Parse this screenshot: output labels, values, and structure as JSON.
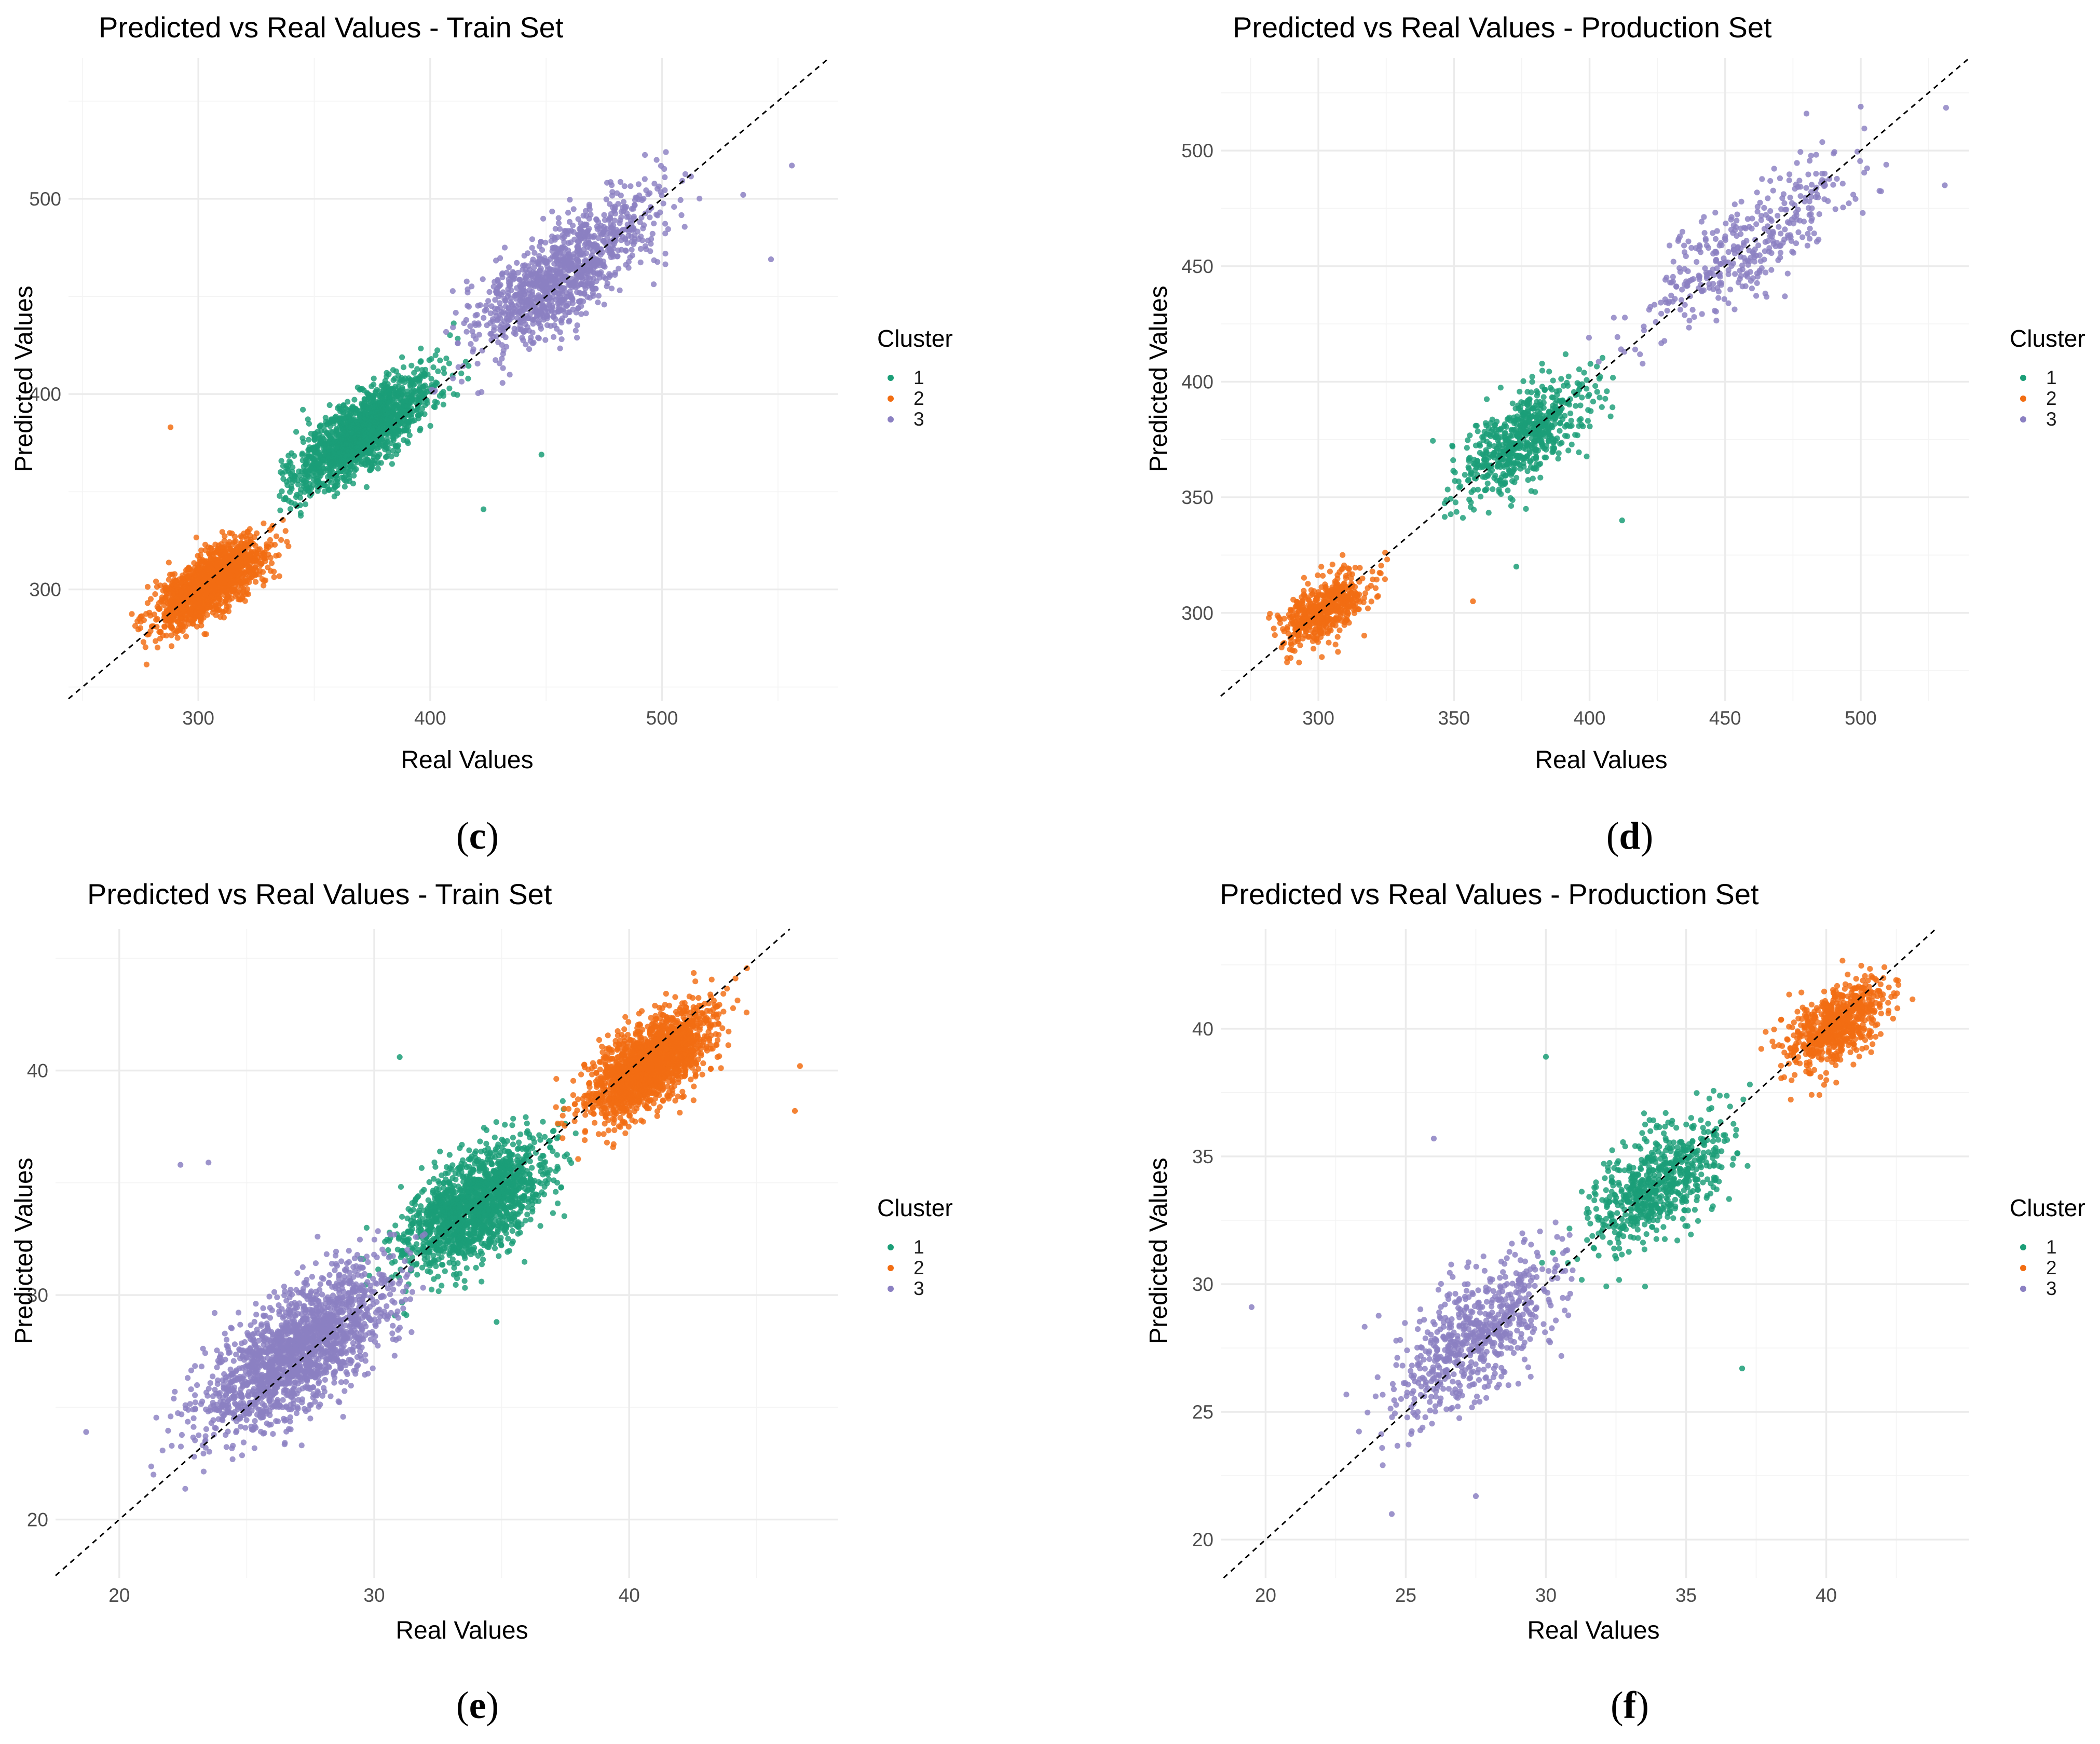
{
  "figure": {
    "panels": [
      {
        "id": "c",
        "caption": {
          "open": "(",
          "letter": "c",
          "close": ")"
        },
        "legend": {
          "title": "Cluster",
          "items": [
            "1",
            "2",
            "3"
          ]
        },
        "chart_data": {
          "type": "scatter",
          "title": "Predicted vs Real Values - Train Set",
          "xlabel": "Real Values",
          "ylabel": "Predicted Values",
          "xlim": [
            244,
            576
          ],
          "ylim": [
            243,
            572
          ],
          "x_ticks": [
            300,
            400,
            500
          ],
          "y_ticks": [
            300,
            400,
            500
          ],
          "reference_line": "y = x (dashed)",
          "series": [
            {
              "name": "1",
              "color": "#1b9e77",
              "n_points": 1600,
              "x_range": [
                335,
                425
              ],
              "center_x": 370,
              "center_y": 380,
              "spread_along": 20,
              "spread_across": 7
            },
            {
              "name": "2",
              "color": "#f26d12",
              "n_points": 1600,
              "x_range": [
                265,
                350
              ],
              "center_x": 305,
              "center_y": 303,
              "spread_along": 14,
              "spread_across": 6
            },
            {
              "name": "3",
              "color": "#8b80c2",
              "n_points": 1100,
              "x_range": [
                400,
                560
              ],
              "center_x": 458,
              "center_y": 462,
              "spread_along": 27,
              "spread_across": 10
            }
          ],
          "outliers": [
            {
              "series": "2",
              "x": 288,
              "y": 383
            },
            {
              "series": "1",
              "x": 448,
              "y": 369
            },
            {
              "series": "1",
              "x": 423,
              "y": 341
            },
            {
              "series": "3",
              "x": 556,
              "y": 517
            },
            {
              "series": "3",
              "x": 547,
              "y": 469
            },
            {
              "series": "3",
              "x": 535,
              "y": 502
            }
          ]
        }
      },
      {
        "id": "d",
        "caption": {
          "open": "(",
          "letter": "d",
          "close": ")"
        },
        "legend": {
          "title": "Cluster",
          "items": [
            "1",
            "2",
            "3"
          ]
        },
        "chart_data": {
          "type": "scatter",
          "title": "Predicted vs Real Values - Production Set",
          "xlabel": "Real Values",
          "ylabel": "Predicted Values",
          "xlim": [
            264,
            540
          ],
          "ylim": [
            262,
            540
          ],
          "x_ticks": [
            300,
            350,
            400,
            450,
            500
          ],
          "y_ticks": [
            300,
            350,
            400,
            450,
            500
          ],
          "reference_line": "y = x (dashed)",
          "series": [
            {
              "name": "1",
              "color": "#1b9e77",
              "n_points": 650,
              "x_range": [
                340,
                415
              ],
              "center_x": 375,
              "center_y": 375,
              "spread_along": 16,
              "spread_across": 7
            },
            {
              "name": "2",
              "color": "#f26d12",
              "n_points": 550,
              "x_range": [
                280,
                340
              ],
              "center_x": 302,
              "center_y": 302,
              "spread_along": 10,
              "spread_across": 5
            },
            {
              "name": "3",
              "color": "#8b80c2",
              "n_points": 380,
              "x_range": [
                395,
                535
              ],
              "center_x": 460,
              "center_y": 460,
              "spread_along": 26,
              "spread_across": 9
            }
          ],
          "outliers": [
            {
              "series": "1",
              "x": 373,
              "y": 320
            },
            {
              "series": "1",
              "x": 412,
              "y": 340
            },
            {
              "series": "2",
              "x": 357,
              "y": 305
            },
            {
              "series": "3",
              "x": 500,
              "y": 519
            },
            {
              "series": "3",
              "x": 480,
              "y": 516
            },
            {
              "series": "3",
              "x": 531,
              "y": 485
            }
          ]
        }
      },
      {
        "id": "e",
        "caption": {
          "open": "(",
          "letter": "e",
          "close": ")"
        },
        "legend": {
          "title": "Cluster",
          "items": [
            "1",
            "2",
            "3"
          ]
        },
        "chart_data": {
          "type": "scatter",
          "title": "Predicted vs Real Values - Train Set",
          "xlabel": "Real Values",
          "ylabel": "Predicted Values",
          "xlim": [
            17.5,
            48.2
          ],
          "ylim": [
            17.4,
            46.3
          ],
          "x_ticks": [
            20,
            30,
            40
          ],
          "y_ticks": [
            20,
            30,
            40
          ],
          "reference_line": "y = x (dashed)",
          "series": [
            {
              "name": "1",
              "color": "#1b9e77",
              "n_points": 1600,
              "x_range": [
                29,
                38
              ],
              "center_x": 34,
              "center_y": 34,
              "spread_along": 1.8,
              "spread_across": 0.9
            },
            {
              "name": "2",
              "color": "#f26d12",
              "n_points": 1800,
              "x_range": [
                37,
                47
              ],
              "center_x": 40.8,
              "center_y": 40.3,
              "spread_along": 1.5,
              "spread_across": 0.7
            },
            {
              "name": "3",
              "color": "#8b80c2",
              "n_points": 1800,
              "x_range": [
                19,
                32
              ],
              "center_x": 27,
              "center_y": 27.5,
              "spread_along": 2.4,
              "spread_across": 1.0
            }
          ],
          "outliers": [
            {
              "series": "1",
              "x": 31,
              "y": 40.6
            },
            {
              "series": "1",
              "x": 34.8,
              "y": 28.8
            },
            {
              "series": "2",
              "x": 46.7,
              "y": 40.2
            },
            {
              "series": "2",
              "x": 46.5,
              "y": 38.2
            },
            {
              "series": "3",
              "x": 18.7,
              "y": 23.9
            },
            {
              "series": "3",
              "x": 22.4,
              "y": 35.8
            },
            {
              "series": "3",
              "x": 23.5,
              "y": 35.9
            }
          ]
        }
      },
      {
        "id": "f",
        "caption": {
          "open": "(",
          "letter": "f",
          "close": ")"
        },
        "legend": {
          "title": "Cluster",
          "items": [
            "1",
            "2",
            "3"
          ]
        },
        "chart_data": {
          "type": "scatter",
          "title": "Predicted vs Real Values - Production Set",
          "xlabel": "Real Values",
          "ylabel": "Predicted Values",
          "xlim": [
            18.4,
            45.1
          ],
          "ylim": [
            18.5,
            43.9
          ],
          "x_ticks": [
            20,
            25,
            30,
            35,
            40
          ],
          "y_ticks": [
            20,
            25,
            30,
            35,
            40
          ],
          "reference_line": "y = x (dashed)",
          "series": [
            {
              "name": "1",
              "color": "#1b9e77",
              "n_points": 650,
              "x_range": [
                29,
                38
              ],
              "center_x": 34,
              "center_y": 34,
              "spread_along": 1.6,
              "spread_across": 0.8
            },
            {
              "name": "2",
              "color": "#f26d12",
              "n_points": 650,
              "x_range": [
                37.5,
                43.5
              ],
              "center_x": 40.4,
              "center_y": 40.2,
              "spread_along": 1.1,
              "spread_across": 0.6
            },
            {
              "name": "3",
              "color": "#8b80c2",
              "n_points": 650,
              "x_range": [
                20,
                31
              ],
              "center_x": 27.5,
              "center_y": 28,
              "spread_along": 2.0,
              "spread_across": 0.9
            }
          ],
          "outliers": [
            {
              "series": "3",
              "x": 19.5,
              "y": 29.1
            },
            {
              "series": "3",
              "x": 26,
              "y": 35.7
            },
            {
              "series": "1",
              "x": 37,
              "y": 26.7
            },
            {
              "series": "1",
              "x": 30,
              "y": 38.9
            },
            {
              "series": "3",
              "x": 24.5,
              "y": 21
            },
            {
              "series": "3",
              "x": 27.5,
              "y": 21.7
            }
          ]
        }
      }
    ]
  }
}
